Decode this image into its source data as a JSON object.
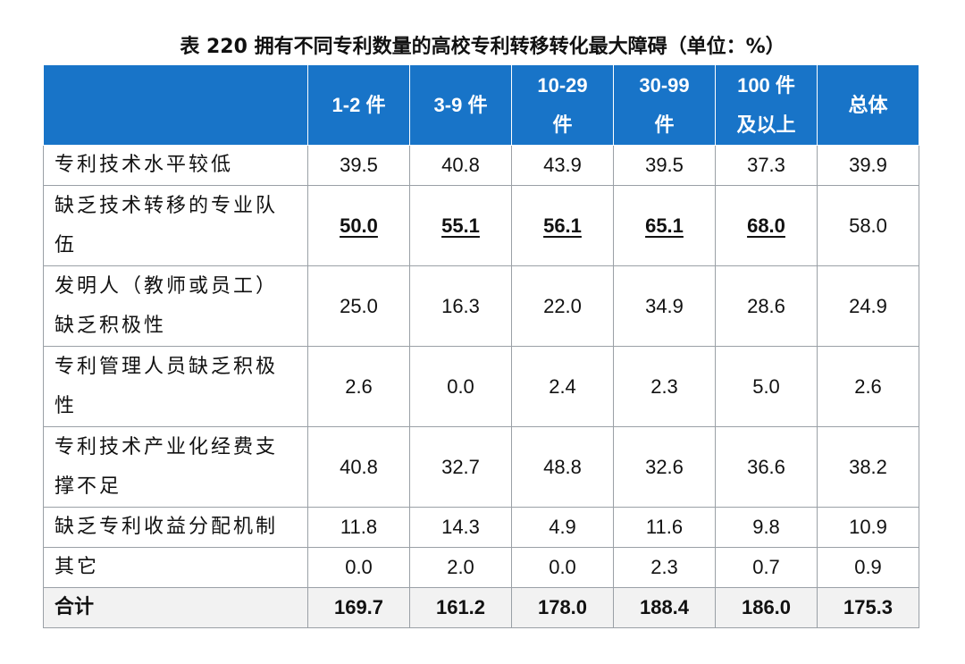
{
  "caption": "表 220  拥有不同专利数量的高校专利转移转化最大障碍（单位：%）",
  "table": {
    "headers": [
      "1-2 件",
      "3-9 件",
      "10-29\n件",
      "30-99\n件",
      "100 件\n及以上",
      "总体"
    ],
    "rows": [
      {
        "label": "专利技术水平较低",
        "values": [
          "39.5",
          "40.8",
          "43.9",
          "39.5",
          "37.3",
          "39.9"
        ],
        "highlight": [
          false,
          false,
          false,
          false,
          false,
          false
        ]
      },
      {
        "label": "缺乏技术转移的专业队伍",
        "values": [
          "50.0",
          "55.1",
          "56.1",
          "65.1",
          "68.0",
          "58.0"
        ],
        "highlight": [
          true,
          true,
          true,
          true,
          true,
          false
        ]
      },
      {
        "label": "发明人（教师或员工）缺乏积极性",
        "values": [
          "25.0",
          "16.3",
          "22.0",
          "34.9",
          "28.6",
          "24.9"
        ],
        "highlight": [
          false,
          false,
          false,
          false,
          false,
          false
        ]
      },
      {
        "label": "专利管理人员缺乏积极性",
        "values": [
          "2.6",
          "0.0",
          "2.4",
          "2.3",
          "5.0",
          "2.6"
        ],
        "highlight": [
          false,
          false,
          false,
          false,
          false,
          false
        ]
      },
      {
        "label": "专利技术产业化经费支撑不足",
        "values": [
          "40.8",
          "32.7",
          "48.8",
          "32.6",
          "36.6",
          "38.2"
        ],
        "highlight": [
          false,
          false,
          false,
          false,
          false,
          false
        ]
      },
      {
        "label": "缺乏专利收益分配机制",
        "values": [
          "11.8",
          "14.3",
          "4.9",
          "11.6",
          "9.8",
          "10.9"
        ],
        "highlight": [
          false,
          false,
          false,
          false,
          false,
          false
        ]
      },
      {
        "label": "其它",
        "values": [
          "0.0",
          "2.0",
          "0.0",
          "2.3",
          "0.7",
          "0.9"
        ],
        "highlight": [
          false,
          false,
          false,
          false,
          false,
          false
        ]
      }
    ],
    "total": {
      "label": "合计",
      "values": [
        "169.7",
        "161.2",
        "178.0",
        "188.4",
        "186.0",
        "175.3"
      ]
    }
  }
}
